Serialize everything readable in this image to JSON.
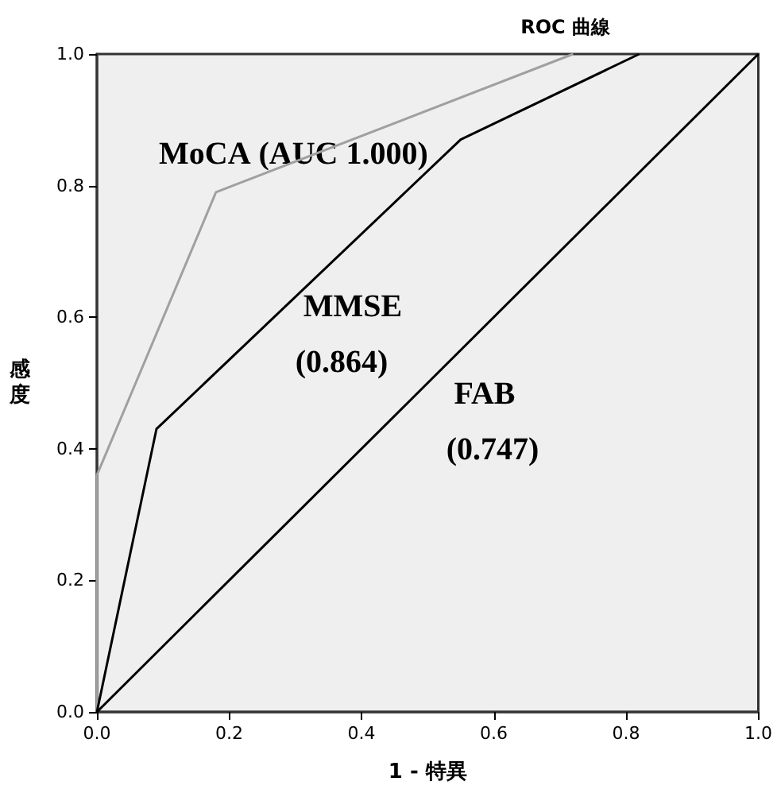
{
  "chart_data": {
    "type": "line",
    "title": "ROC 曲線",
    "xlabel": "1 - 特異",
    "ylabel": "感度",
    "series": [
      {
        "name": "MoCA",
        "color": "#a0a0a0",
        "x": [
          0,
          0,
          0.18,
          0.72
        ],
        "values": [
          0,
          0.36,
          0.79,
          1.0
        ]
      },
      {
        "name": "MMSE",
        "color": "#000000",
        "x": [
          0,
          0.09,
          0.55,
          0.82
        ],
        "values": [
          0,
          0.43,
          0.87,
          1.0
        ]
      },
      {
        "name": "FAB",
        "color": "#000000",
        "x": [
          0,
          1
        ],
        "values": [
          0,
          1
        ]
      }
    ],
    "annotations": [
      "(AUC 1.000)",
      "(0.864)",
      "(0.747)"
    ],
    "xlim": [
      0,
      1
    ],
    "ylim": [
      0,
      1
    ],
    "xticks": [
      {
        "value": 0,
        "label": "0.0"
      },
      {
        "value": 0.2,
        "label": "0.2"
      },
      {
        "value": 0.4,
        "label": "0.4"
      },
      {
        "value": 0.6,
        "label": "0.6"
      },
      {
        "value": 0.8,
        "label": "0.8"
      },
      {
        "value": 1,
        "label": "1.0"
      }
    ],
    "yticks": [
      {
        "value": 0,
        "label": "0.0"
      },
      {
        "value": 0.2,
        "label": "0.2"
      },
      {
        "value": 0.4,
        "label": "0.4"
      },
      {
        "value": 0.6,
        "label": "0.6"
      },
      {
        "value": 0.8,
        "label": "0.8"
      },
      {
        "value": 1,
        "label": "1.0"
      }
    ],
    "grid": false,
    "legend": false,
    "marker": "none",
    "line_style": "solid"
  }
}
